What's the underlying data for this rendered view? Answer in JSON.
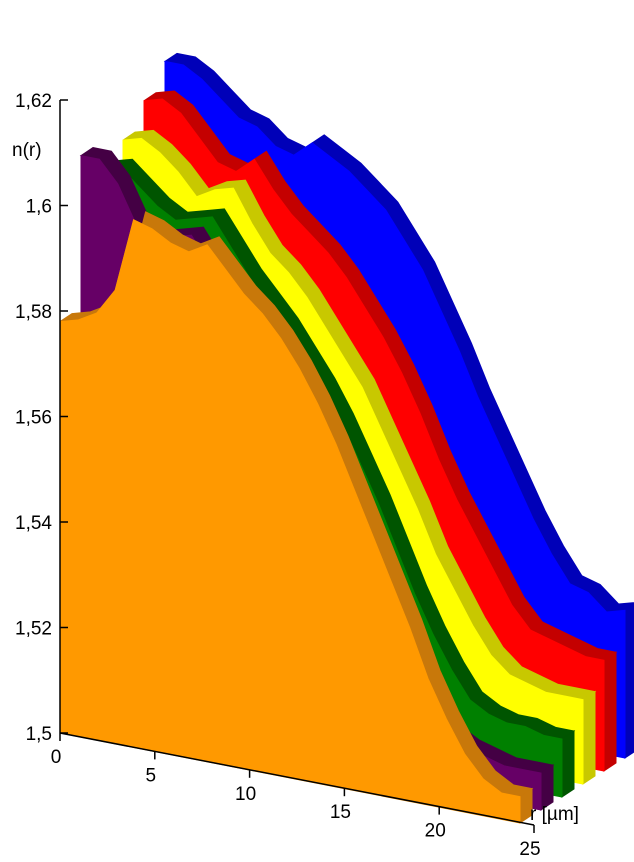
{
  "chart_data": {
    "type": "area",
    "title": "",
    "ylabel": "n(r)",
    "xlabel": "r [µm]",
    "ylim": [
      1.5,
      1.62
    ],
    "xlim": [
      0,
      25
    ],
    "yticks": [
      "1,5",
      "1,52",
      "1,54",
      "1,56",
      "1,58",
      "1,6",
      "1,62"
    ],
    "xticks": [
      "0",
      "5",
      "10",
      "15",
      "20",
      "25"
    ],
    "grid": false,
    "legend": "none",
    "x": [
      0,
      1,
      2,
      3,
      4,
      5,
      6,
      7,
      8,
      9,
      10,
      11,
      12,
      13,
      14,
      15,
      16,
      17,
      18,
      19,
      20,
      21,
      22,
      23,
      24,
      25
    ],
    "series": [
      {
        "color": "#0000ff",
        "side": "#0000b8",
        "values": [
          1.615,
          1.615,
          1.613,
          1.61,
          1.607,
          1.606,
          1.603,
          1.602,
          1.605,
          1.603,
          1.601,
          1.598,
          1.595,
          1.59,
          1.585,
          1.578,
          1.571,
          1.563,
          1.556,
          1.549,
          1.542,
          1.536,
          1.531,
          1.53,
          1.527,
          1.528
        ]
      },
      {
        "color": "#ff0000",
        "side": "#c40000",
        "values": [
          1.61,
          1.611,
          1.609,
          1.605,
          1.601,
          1.6,
          1.603,
          1.598,
          1.594,
          1.591,
          1.588,
          1.584,
          1.579,
          1.574,
          1.568,
          1.561,
          1.553,
          1.546,
          1.54,
          1.534,
          1.528,
          1.524,
          1.523,
          1.522,
          1.521,
          1.521
        ]
      },
      {
        "color": "#ffff00",
        "side": "#c8c800",
        "values": [
          1.605,
          1.606,
          1.604,
          1.601,
          1.597,
          1.599,
          1.6,
          1.594,
          1.589,
          1.586,
          1.582,
          1.577,
          1.572,
          1.567,
          1.56,
          1.553,
          1.546,
          1.538,
          1.532,
          1.526,
          1.521,
          1.518,
          1.517,
          1.516,
          1.516,
          1.516
        ]
      },
      {
        "color": "#008000",
        "side": "#005500",
        "values": [
          1.602,
          1.603,
          1.6,
          1.597,
          1.595,
          1.596,
          1.597,
          1.592,
          1.587,
          1.583,
          1.579,
          1.574,
          1.569,
          1.563,
          1.556,
          1.549,
          1.541,
          1.533,
          1.526,
          1.52,
          1.515,
          1.513,
          1.512,
          1.512,
          1.511,
          1.511
        ]
      },
      {
        "color": "#660066",
        "side": "#440044",
        "values": [
          1.607,
          1.607,
          1.603,
          1.596,
          1.594,
          1.595,
          1.596,
          1.591,
          1.586,
          1.582,
          1.578,
          1.573,
          1.567,
          1.561,
          1.554,
          1.546,
          1.538,
          1.53,
          1.523,
          1.516,
          1.511,
          1.509,
          1.508,
          1.507,
          1.507,
          1.507
        ]
      },
      {
        "color": "#ff9900",
        "side": "#c8780a",
        "values": [
          1.578,
          1.579,
          1.581,
          1.586,
          1.6,
          1.599,
          1.597,
          1.596,
          1.598,
          1.594,
          1.59,
          1.587,
          1.583,
          1.578,
          1.572,
          1.565,
          1.557,
          1.549,
          1.541,
          1.533,
          1.524,
          1.517,
          1.511,
          1.507,
          1.505,
          1.505
        ]
      }
    ]
  }
}
